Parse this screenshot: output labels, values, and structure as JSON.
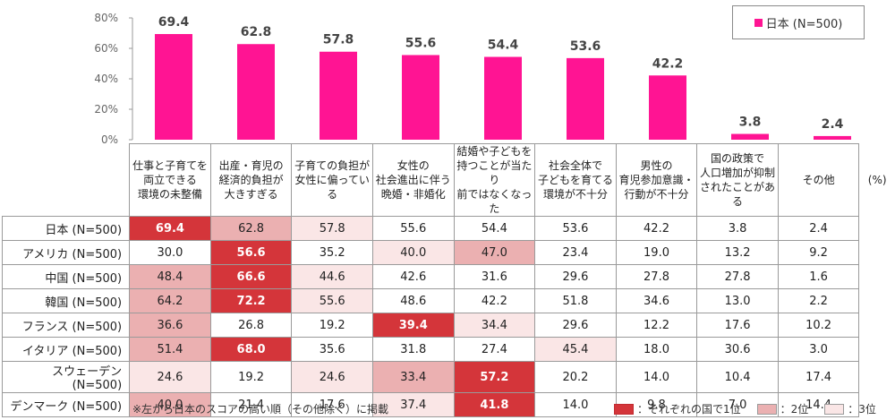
{
  "chart_data": {
    "type": "bar",
    "series_name": "日本 (N=500)",
    "categories": [
      "仕事と子育てを\n両立できる\n環境の未整備",
      "出産・育児の\n経済的負担が\n大きすぎる",
      "子育ての負担が\n女性に偏っている",
      "女性の\n社会進出に伴う\n晩婚・非婚化",
      "結婚や子どもを\n持つことが当たり\n前ではなくなった",
      "社会全体で\n子どもを育てる\n環境が不十分",
      "男性の\n育児参加意識・\n行動が不十分",
      "国の政策で\n人口増加が抑制\nされたことがある",
      "その他"
    ],
    "values": [
      69.4,
      62.8,
      57.8,
      55.6,
      54.4,
      53.6,
      42.2,
      3.8,
      2.4
    ],
    "value_labels": [
      "69.4",
      "62.8",
      "57.8",
      "55.6",
      "54.4",
      "53.6",
      "42.2",
      "3.8",
      "2.4"
    ],
    "ylim": [
      0,
      80
    ],
    "yticks": [
      "0%",
      "20%",
      "40%",
      "60%",
      "80%"
    ],
    "ytick_values": [
      0,
      20,
      40,
      60,
      80
    ],
    "bar_color": "#ff1493",
    "legend_position": "top-right"
  },
  "table": {
    "unit": "(%)",
    "rows": [
      {
        "label": "日本 (N=500)",
        "values": [
          "69.4",
          "62.8",
          "57.8",
          "55.6",
          "54.4",
          "53.6",
          "42.2",
          "3.8",
          "2.4"
        ],
        "ranks": [
          1,
          2,
          3,
          0,
          0,
          0,
          0,
          0,
          0
        ]
      },
      {
        "label": "アメリカ (N=500)",
        "values": [
          "30.0",
          "56.6",
          "35.2",
          "40.0",
          "47.0",
          "23.4",
          "19.0",
          "13.2",
          "9.2"
        ],
        "ranks": [
          0,
          1,
          0,
          3,
          2,
          0,
          0,
          0,
          0
        ]
      },
      {
        "label": "中国 (N=500)",
        "values": [
          "48.4",
          "66.6",
          "44.6",
          "42.6",
          "31.6",
          "29.6",
          "27.8",
          "27.8",
          "1.6"
        ],
        "ranks": [
          2,
          1,
          3,
          0,
          0,
          0,
          0,
          0,
          0
        ]
      },
      {
        "label": "韓国 (N=500)",
        "values": [
          "64.2",
          "72.2",
          "55.6",
          "48.6",
          "42.2",
          "51.8",
          "34.6",
          "13.0",
          "2.2"
        ],
        "ranks": [
          2,
          1,
          3,
          0,
          0,
          0,
          0,
          0,
          0
        ]
      },
      {
        "label": "フランス (N=500)",
        "values": [
          "36.6",
          "26.8",
          "19.2",
          "39.4",
          "34.4",
          "29.6",
          "12.2",
          "17.6",
          "10.2"
        ],
        "ranks": [
          2,
          0,
          0,
          1,
          3,
          0,
          0,
          0,
          0
        ]
      },
      {
        "label": "イタリア (N=500)",
        "values": [
          "51.4",
          "68.0",
          "35.6",
          "31.8",
          "27.4",
          "45.4",
          "18.0",
          "30.6",
          "3.0"
        ],
        "ranks": [
          2,
          1,
          0,
          0,
          0,
          3,
          0,
          0,
          0
        ]
      },
      {
        "label": "スウェーデン (N=500)",
        "values": [
          "24.6",
          "19.2",
          "24.6",
          "33.4",
          "57.2",
          "20.2",
          "14.0",
          "10.4",
          "17.4"
        ],
        "ranks": [
          3,
          0,
          3,
          2,
          1,
          0,
          0,
          0,
          0
        ]
      },
      {
        "label": "デンマーク (N=500)",
        "values": [
          "40.0",
          "21.4",
          "17.6",
          "37.4",
          "41.8",
          "14.0",
          "9.8",
          "7.0",
          "14.4"
        ],
        "ranks": [
          2,
          0,
          0,
          3,
          1,
          0,
          0,
          0,
          0
        ]
      }
    ],
    "rank_colors": {
      "1": "#d4353a",
      "2": "#ebb0b1",
      "3": "#fae6e6"
    }
  },
  "footnote": "※左から日本のスコアの高い順（その他除く）に掲載",
  "rank_key": {
    "first": "：それぞれの国で1位",
    "second": "：2位",
    "third": "：3位"
  }
}
